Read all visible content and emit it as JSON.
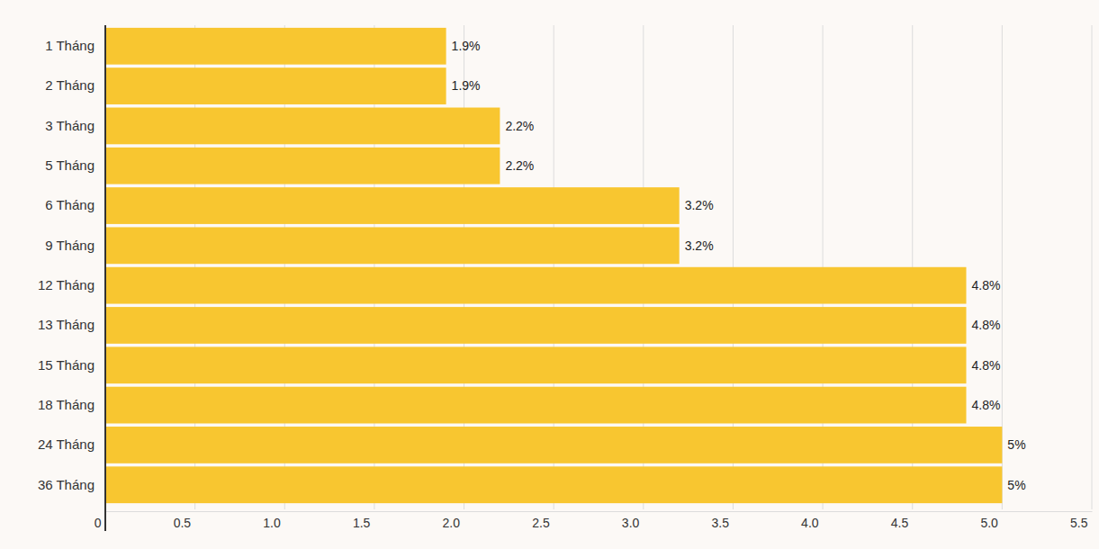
{
  "chart_data": {
    "type": "bar",
    "orientation": "horizontal",
    "categories": [
      "1 Tháng",
      "2 Tháng",
      "3 Tháng",
      "5 Tháng",
      "6 Tháng",
      "9 Tháng",
      "12 Tháng",
      "13 Tháng",
      "15 Tháng",
      "18 Tháng",
      "24 Tháng",
      "36 Tháng"
    ],
    "values": [
      1.9,
      1.9,
      2.2,
      2.2,
      3.2,
      3.2,
      4.8,
      4.8,
      4.8,
      4.8,
      5,
      5
    ],
    "value_labels": [
      "1.9%",
      "1.9%",
      "2.2%",
      "2.2%",
      "3.2%",
      "3.2%",
      "4.8%",
      "4.8%",
      "4.8%",
      "4.8%",
      "5%",
      "5%"
    ],
    "data_labels": true,
    "color": "#f8c630",
    "xlim": [
      0,
      5.5
    ],
    "xticks": [
      0,
      0.5,
      {
        "value": 1,
        "label": "1.0"
      },
      1.5,
      {
        "value": 2,
        "label": "2.0"
      },
      2.5,
      {
        "value": 3,
        "label": "3.0"
      },
      3.5,
      {
        "value": 4,
        "label": "4.0"
      },
      4.5,
      {
        "value": 5,
        "label": "5.0"
      },
      5.5
    ],
    "grid": true
  }
}
